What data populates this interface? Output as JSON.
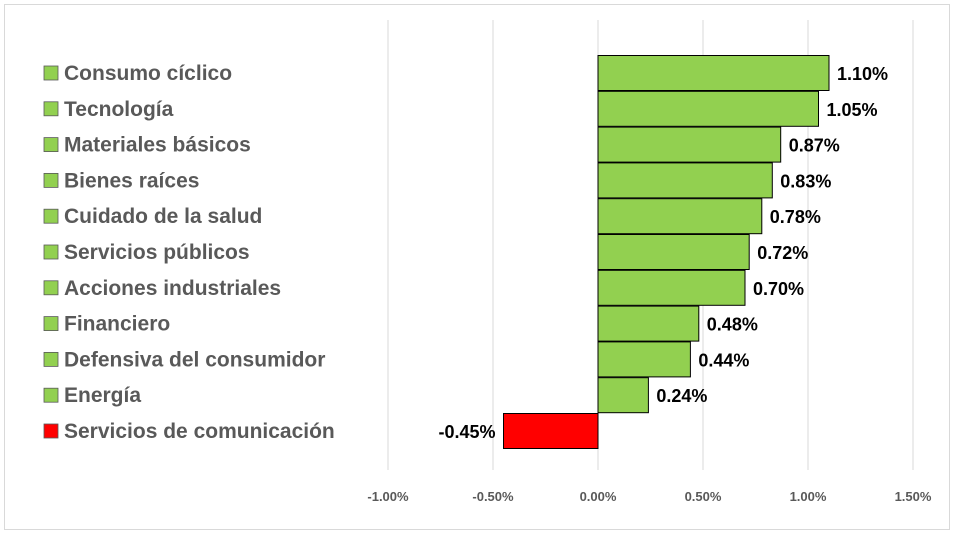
{
  "chart_data": {
    "type": "bar",
    "orientation": "horizontal",
    "title": "",
    "xlabel": "",
    "ylabel": "",
    "categories": [
      "Consumo cíclico",
      "Tecnología",
      "Materiales básicos",
      "Bienes raíces",
      "Cuidado de la salud",
      "Servicios públicos",
      "Acciones industriales",
      "Financiero",
      "Defensiva del consumidor",
      "Energía",
      "Servicios de comunicación"
    ],
    "values": [
      1.1,
      1.05,
      0.87,
      0.83,
      0.78,
      0.72,
      0.7,
      0.48,
      0.44,
      0.24,
      -0.45
    ],
    "value_labels": [
      "1.10%",
      "1.05%",
      "0.87%",
      "0.83%",
      "0.78%",
      "0.72%",
      "0.70%",
      "0.48%",
      "0.44%",
      "0.24%",
      "-0.45%"
    ],
    "xlim": [
      -1.0,
      1.5
    ],
    "xticks": [
      -1.0,
      -0.5,
      0.0,
      0.5,
      1.0,
      1.5
    ],
    "xtick_labels": [
      "-1.00%",
      "-0.50%",
      "0.00%",
      "0.50%",
      "1.00%",
      "1.50%"
    ],
    "grid": true,
    "legend": "left",
    "colors": {
      "positive": "#92d050",
      "negative": "#ff0000",
      "grid": "#d9d9d9",
      "bar_border": "#000000"
    }
  }
}
